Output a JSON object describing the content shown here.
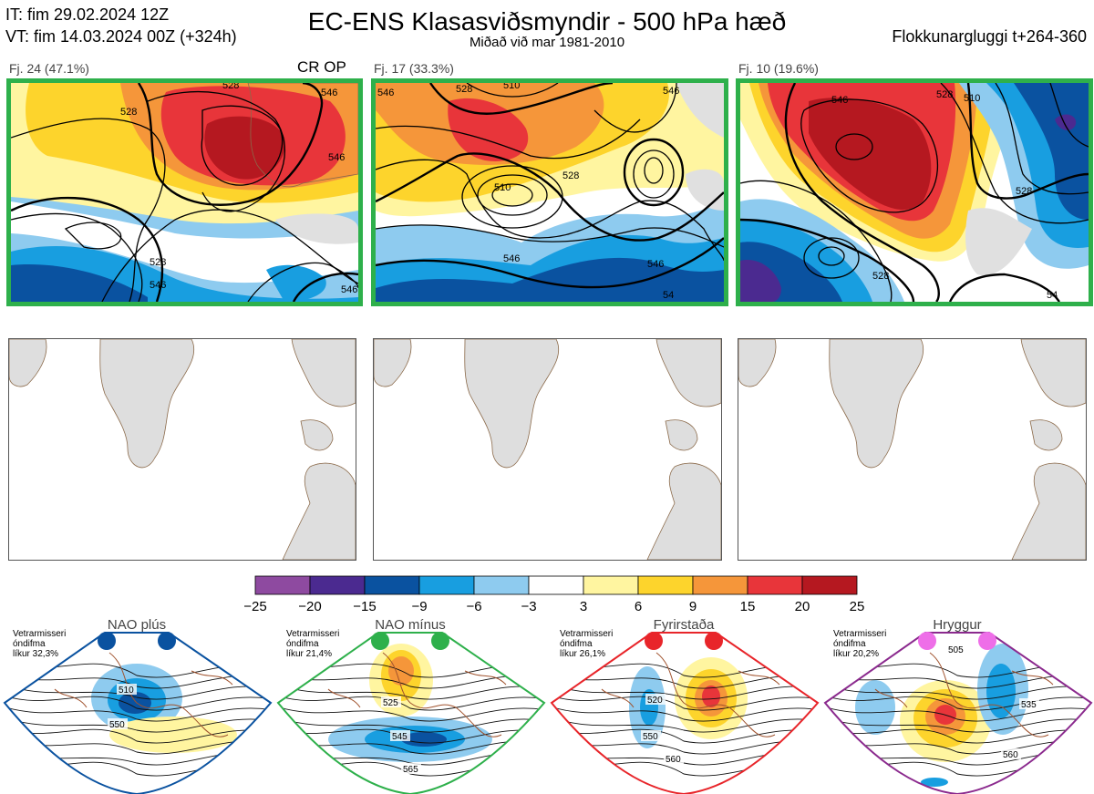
{
  "header": {
    "it_line": "IT: fim 29.02.2024 12Z",
    "vt_line": "VT: fim 14.03.2024 00Z  (+324h)",
    "title": "EC-ENS Klasasviðsmyndir - 500 hPa hæð",
    "subtitle": "Miðað við mar 1981-2010",
    "window": "Flokkunargluggi t+264-360"
  },
  "panels": [
    {
      "label": "Fj. 24 (47.1%)",
      "badge": "CR OP",
      "contour_labels": [
        "528",
        "546",
        "528",
        "546",
        "528",
        "546",
        "546"
      ]
    },
    {
      "label": "Fj. 17 (33.3%)",
      "badge": "",
      "contour_labels": [
        "546",
        "528",
        "510",
        "546",
        "528",
        "510",
        "546",
        "546",
        "54"
      ]
    },
    {
      "label": "Fj. 10 (19.6%)",
      "badge": "",
      "contour_labels": [
        "546",
        "528",
        "510",
        "528",
        "528",
        "54"
      ]
    }
  ],
  "colorbar": {
    "ticks": [
      "−25",
      "−20",
      "−15",
      "−9",
      "−6",
      "−3",
      "3",
      "6",
      "9",
      "15",
      "20",
      "25"
    ],
    "colors": [
      "#8e4aa0",
      "#4b2a90",
      "#0a52a0",
      "#189ee0",
      "#8ecbef",
      "#ffffff",
      "#fff5a0",
      "#fdd42c",
      "#f5963a",
      "#e8353a",
      "#b51820"
    ]
  },
  "regimes": [
    {
      "name": "NAO plús",
      "stats": [
        "Vetrarmisseri",
        "óndifma",
        "líkur 32,3%"
      ],
      "dot_color": "#0a52a0",
      "border_color": "#0a52a0",
      "contour_labels": [
        "510",
        "550"
      ]
    },
    {
      "name": "NAO mínus",
      "stats": [
        "Vetrarmisseri",
        "óndifma",
        "líkur 21,4%"
      ],
      "dot_color": "#2eb04b",
      "border_color": "#2eb04b",
      "contour_labels": [
        "525",
        "545",
        "565"
      ]
    },
    {
      "name": "Fyrirstaða",
      "stats": [
        "Vetrarmisseri",
        "óndifma",
        "líkur 26,1%"
      ],
      "dot_color": "#e8252a",
      "border_color": "#e8252a",
      "contour_labels": [
        "520",
        "550",
        "560"
      ]
    },
    {
      "name": "Hryggur",
      "stats": [
        "Vetrarmisseri",
        "óndifma",
        "líkur 20,2%"
      ],
      "dot_color": "#ee6ee8",
      "border_color": "#8b2a8e",
      "contour_labels": [
        "505",
        "535",
        "560"
      ]
    }
  ]
}
